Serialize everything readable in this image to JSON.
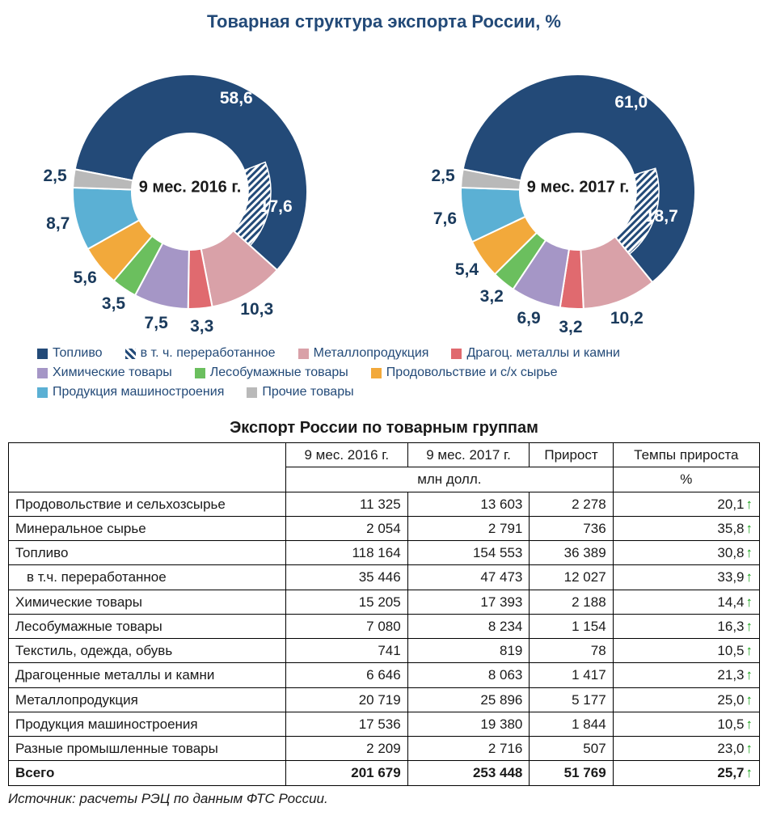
{
  "title": "Товарная структура экспорта России, %",
  "legend": [
    {
      "label": "Топливо",
      "color": "#234a78",
      "pattern": false
    },
    {
      "label": "в т. ч. переработанное",
      "color": "#234a78",
      "pattern": true
    },
    {
      "label": "Металлопродукция",
      "color": "#d9a1a8"
    },
    {
      "label": "Драгоц. металлы и камни",
      "color": "#e06a6f"
    },
    {
      "label": "Химические товары",
      "color": "#a596c6"
    },
    {
      "label": "Лесобумажные товары",
      "color": "#6bbf5e"
    },
    {
      "label": "Продовольствие и с/х сырье",
      "color": "#f2a93b"
    },
    {
      "label": "Продукция машиностроения",
      "color": "#5bb0d4"
    },
    {
      "label": "Прочие товары",
      "color": "#b9b9b9"
    }
  ],
  "charts": [
    {
      "center": "9 мес. 2016 г.",
      "inner_value": 17.6,
      "inner_label": "17,6",
      "inner_color": "#234a78",
      "slices": [
        {
          "v": 58.6,
          "label": "58,6",
          "color": "#234a78"
        },
        {
          "v": 10.3,
          "label": "10,3",
          "color": "#d9a1a8"
        },
        {
          "v": 3.3,
          "label": "3,3",
          "color": "#e06a6f"
        },
        {
          "v": 7.5,
          "label": "7,5",
          "color": "#a596c6"
        },
        {
          "v": 3.5,
          "label": "3,5",
          "color": "#6bbf5e"
        },
        {
          "v": 5.6,
          "label": "5,6",
          "color": "#f2a93b"
        },
        {
          "v": 8.7,
          "label": "8,7",
          "color": "#5bb0d4"
        },
        {
          "v": 2.5,
          "label": "2,5",
          "color": "#b9b9b9"
        }
      ]
    },
    {
      "center": "9 мес. 2017 г.",
      "inner_value": 18.7,
      "inner_label": "18,7",
      "inner_color": "#234a78",
      "slices": [
        {
          "v": 61.0,
          "label": "61,0",
          "color": "#234a78"
        },
        {
          "v": 10.2,
          "label": "10,2",
          "color": "#d9a1a8"
        },
        {
          "v": 3.2,
          "label": "3,2",
          "color": "#e06a6f"
        },
        {
          "v": 6.9,
          "label": "6,9",
          "color": "#a596c6"
        },
        {
          "v": 3.2,
          "label": "3,2",
          "color": "#6bbf5e"
        },
        {
          "v": 5.4,
          "label": "5,4",
          "color": "#f2a93b"
        },
        {
          "v": 7.6,
          "label": "7,6",
          "color": "#5bb0d4"
        },
        {
          "v": 2.5,
          "label": "2,5",
          "color": "#b9b9b9"
        }
      ]
    }
  ],
  "donut": {
    "size": 370,
    "outerR": 145,
    "innerR": 72,
    "hatchR": 100,
    "startAngle": -79,
    "labelR": 168,
    "background": "#ffffff"
  },
  "table": {
    "title": "Экспорт России по товарным группам",
    "col_headers": [
      "9 мес. 2016 г.",
      "9 мес. 2017 г.",
      "Прирост",
      "Темпы прироста"
    ],
    "unit_row": [
      "млн долл.",
      "%"
    ],
    "rows": [
      {
        "label": "Продовольствие и сельхозсырье",
        "c": [
          "11 325",
          "13 603",
          "2 278",
          "20,1"
        ],
        "up": true
      },
      {
        "label": "Минеральное сырье",
        "c": [
          "2 054",
          "2 791",
          "736",
          "35,8"
        ],
        "up": true
      },
      {
        "label": "Топливо",
        "c": [
          "118 164",
          "154 553",
          "36 389",
          "30,8"
        ],
        "up": true
      },
      {
        "label": "в т.ч. переработанное",
        "c": [
          "35 446",
          "47 473",
          "12 027",
          "33,9"
        ],
        "up": true,
        "indent": true
      },
      {
        "label": "Химические товары",
        "c": [
          "15 205",
          "17 393",
          "2 188",
          "14,4"
        ],
        "up": true
      },
      {
        "label": "Лесобумажные товары",
        "c": [
          "7 080",
          "8 234",
          "1 154",
          "16,3"
        ],
        "up": true
      },
      {
        "label": "Текстиль, одежда, обувь",
        "c": [
          "741",
          "819",
          "78",
          "10,5"
        ],
        "up": true
      },
      {
        "label": "Драгоценные металлы и камни",
        "c": [
          "6 646",
          "8 063",
          "1 417",
          "21,3"
        ],
        "up": true
      },
      {
        "label": "Металлопродукция",
        "c": [
          "20 719",
          "25 896",
          "5 177",
          "25,0"
        ],
        "up": true
      },
      {
        "label": "Продукция машиностроения",
        "c": [
          "17 536",
          "19 380",
          "1 844",
          "10,5"
        ],
        "up": true
      },
      {
        "label": "Разные промышленные товары",
        "c": [
          "2 209",
          "2 716",
          "507",
          "23,0"
        ],
        "up": true
      }
    ],
    "total": {
      "label": "Всего",
      "c": [
        "201 679",
        "253 448",
        "51 769",
        "25,7"
      ],
      "up": true
    }
  },
  "source": "Источник: расчеты РЭЦ по данным ФТС России."
}
